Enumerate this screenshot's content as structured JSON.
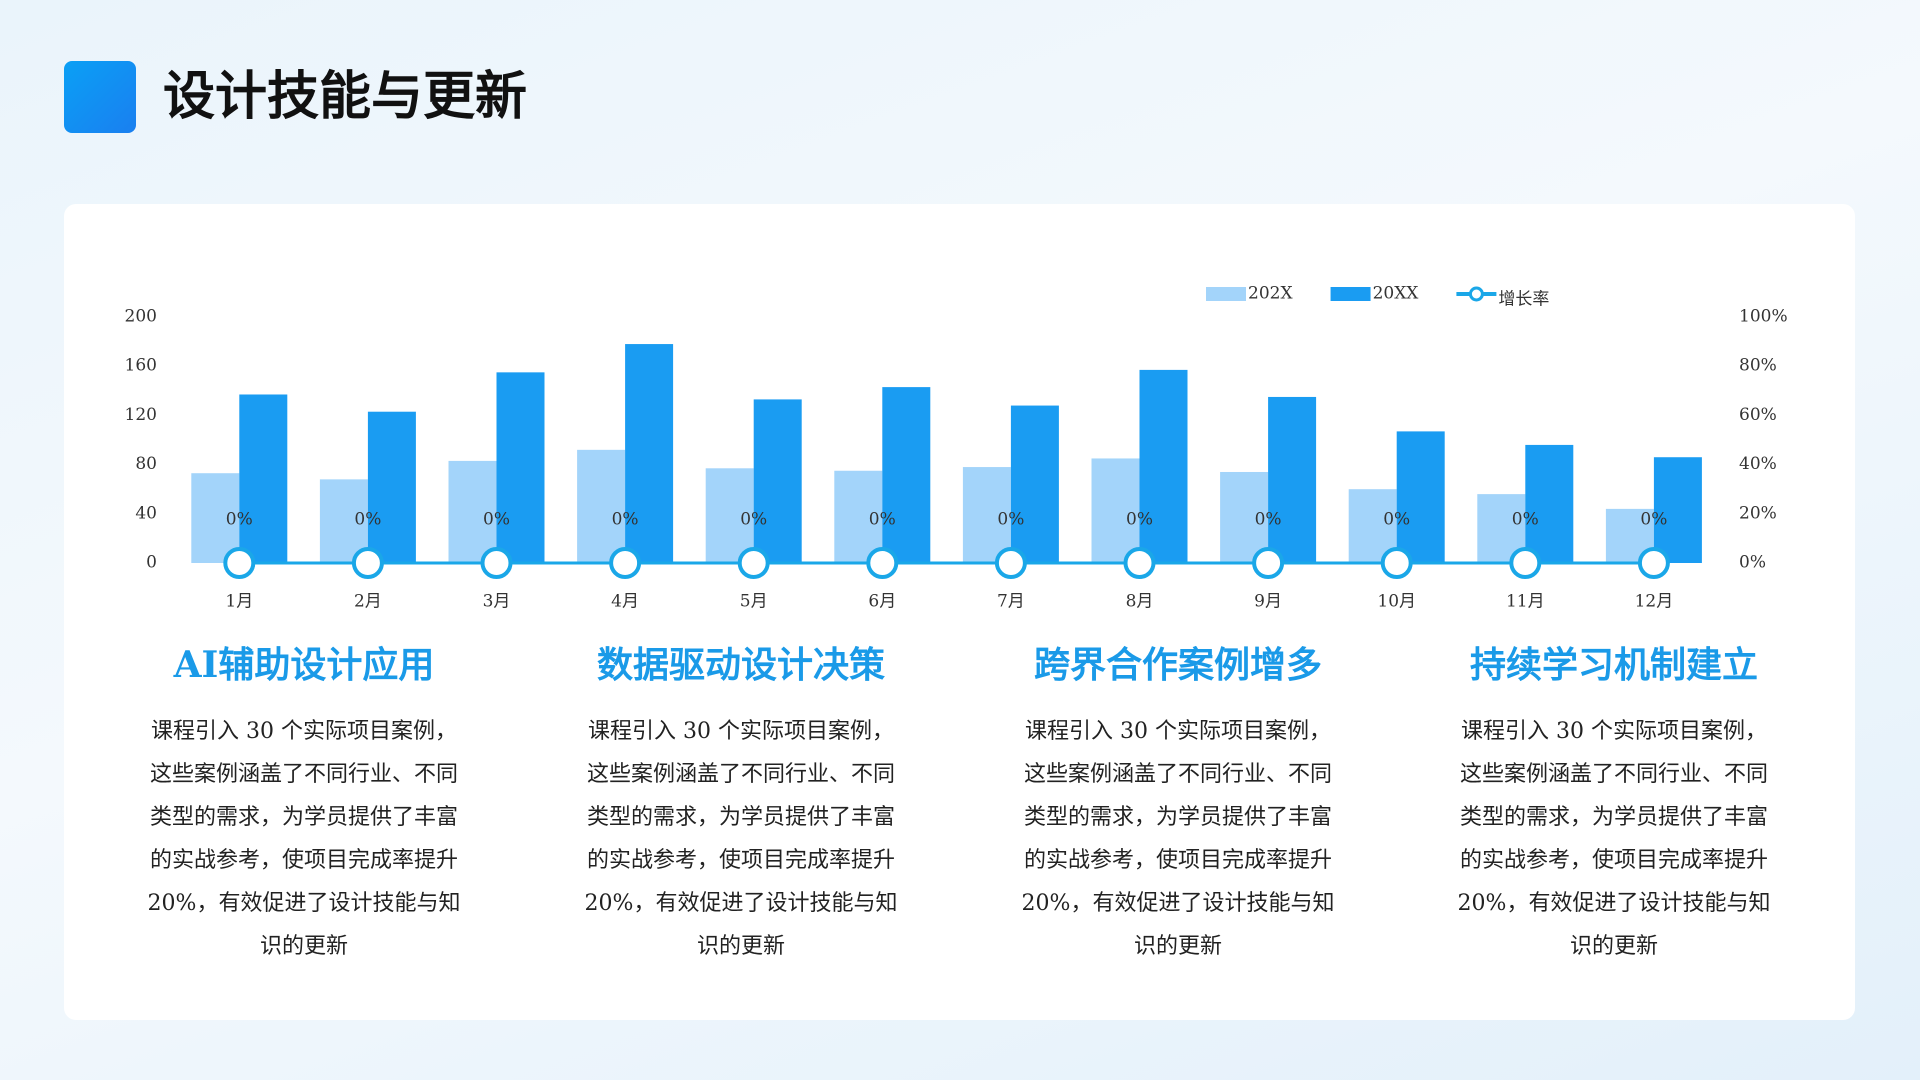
{
  "header": {
    "title": "设计技能与更新"
  },
  "chart_data": {
    "type": "combo",
    "categories": [
      "1月",
      "2月",
      "3月",
      "4月",
      "5月",
      "6月",
      "7月",
      "8月",
      "9月",
      "10月",
      "11月",
      "12月"
    ],
    "series": [
      {
        "name": "202X",
        "type": "bar",
        "color": "#a3d4fa",
        "values": [
          73,
          68,
          83,
          92,
          77,
          75,
          78,
          85,
          74,
          60,
          56,
          44
        ]
      },
      {
        "name": "20XX",
        "type": "bar",
        "color": "#1a9cf2",
        "values": [
          137,
          123,
          155,
          178,
          133,
          143,
          128,
          157,
          135,
          107,
          96,
          86
        ]
      },
      {
        "name": "增长率",
        "type": "line",
        "axis": "y2",
        "color": "#1aa7e8",
        "values": [
          0,
          0,
          0,
          0,
          0,
          0,
          0,
          0,
          0,
          0,
          0,
          0
        ],
        "value_labels": [
          "0%",
          "0%",
          "0%",
          "0%",
          "0%",
          "0%",
          "0%",
          "0%",
          "0%",
          "0%",
          "0%",
          "0%"
        ]
      }
    ],
    "ylim": [
      0,
      200
    ],
    "yticks": [
      0,
      40,
      80,
      120,
      160,
      200
    ],
    "y2lim": [
      0,
      100
    ],
    "y2ticks": [
      {
        "value": 0,
        "label": "0%"
      },
      {
        "value": 20,
        "label": "20%"
      },
      {
        "value": 40,
        "label": "40%"
      },
      {
        "value": 60,
        "label": "60%"
      },
      {
        "value": 80,
        "label": "80%"
      },
      {
        "value": 100,
        "label": "100%"
      }
    ],
    "legend": "top-right"
  },
  "cards": [
    {
      "title": "AI辅助设计应用",
      "text": "课程引入 30 个实际项目案例，这些案例涵盖了不同行业、不同类型的需求，为学员提供了丰富的实战参考，使项目完成率提升 20%，有效促进了设计技能与知识的更新"
    },
    {
      "title": "数据驱动设计决策",
      "text": "课程引入 30 个实际项目案例，这些案例涵盖了不同行业、不同类型的需求，为学员提供了丰富的实战参考，使项目完成率提升 20%，有效促进了设计技能与知识的更新"
    },
    {
      "title": "跨界合作案例增多",
      "text": "课程引入 30 个实际项目案例，这些案例涵盖了不同行业、不同类型的需求，为学员提供了丰富的实战参考，使项目完成率提升 20%，有效促进了设计技能与知识的更新"
    },
    {
      "title": "持续学习机制建立",
      "text": "课程引入 30 个实际项目案例，这些案例涵盖了不同行业、不同类型的需求，为学员提供了丰富的实战参考，使项目完成率提升 20%，有效促进了设计技能与知识的更新"
    }
  ]
}
